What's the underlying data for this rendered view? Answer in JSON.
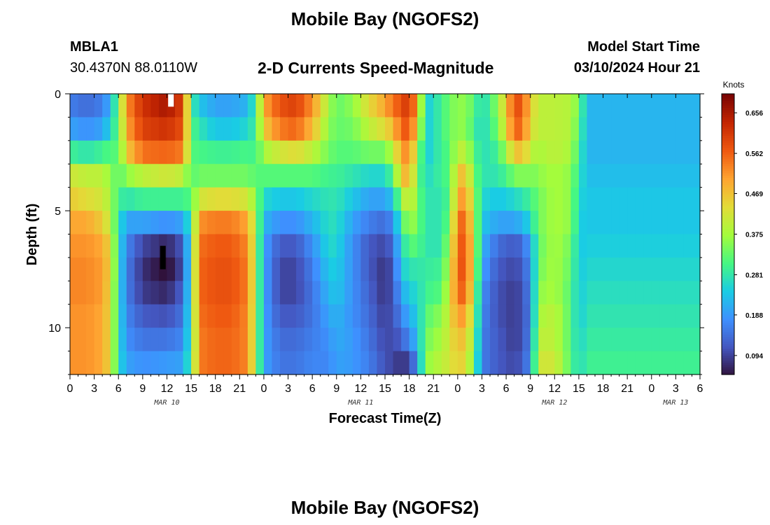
{
  "header": {
    "title": "Mobile Bay (NGOFS2)",
    "station_id": "MBLA1",
    "station_coords": "30.4370N  88.0110W",
    "subtitle": "2-D Currents Speed-Magnitude",
    "model_start_label": "Model Start Time",
    "model_start_value": "03/10/2024 Hour 21"
  },
  "footer": {
    "title": "Mobile Bay (NGOFS2)"
  },
  "chart_data": {
    "type": "heatmap",
    "xlabel": "Forecast Time(Z)",
    "ylabel": "Depth (ft)",
    "colorbar_label": "Knots",
    "colorbar_ticks": [
      "0.656",
      "0.562",
      "0.469",
      "0.375",
      "0.281",
      "0.188",
      "0.094"
    ],
    "colorbar_range": [
      0.05,
      0.7
    ],
    "xlim_hours": [
      0,
      78
    ],
    "ylim_ft": [
      0,
      12
    ],
    "x_tick_labels": [
      "0",
      "3",
      "6",
      "9",
      "12",
      "15",
      "18",
      "21",
      "0",
      "3",
      "6",
      "9",
      "12",
      "15",
      "18",
      "21",
      "0",
      "3",
      "6",
      "9",
      "12",
      "15",
      "18",
      "21",
      "0",
      "3",
      "6"
    ],
    "y_tick_labels": [
      "0",
      "5",
      "10"
    ],
    "date_labels": [
      {
        "label": "MAR 10",
        "hour": 12
      },
      {
        "label": "MAR 11",
        "hour": 36
      },
      {
        "label": "MAR 12",
        "hour": 60
      },
      {
        "label": "MAR 13",
        "hour": 75
      }
    ],
    "time_step_hours": 1,
    "depth_levels_ft": [
      0.5,
      1.5,
      2.5,
      3.5,
      4.5,
      5.5,
      6.5,
      7.5,
      8.5,
      9.5,
      10.5,
      11.5
    ],
    "column_profiles": {
      "0": [
        0.16,
        0.2,
        0.3,
        0.42,
        0.46,
        0.5,
        0.52,
        0.53,
        0.53,
        0.52,
        0.52,
        0.52
      ],
      "2": [
        0.14,
        0.18,
        0.28,
        0.4,
        0.44,
        0.5,
        0.52,
        0.53,
        0.53,
        0.52,
        0.52,
        0.52
      ],
      "4": [
        0.16,
        0.2,
        0.3,
        0.4,
        0.42,
        0.46,
        0.5,
        0.51,
        0.51,
        0.5,
        0.5,
        0.5
      ],
      "5": [
        0.22,
        0.26,
        0.32,
        0.36,
        0.38,
        0.4,
        0.44,
        0.45,
        0.44,
        0.44,
        0.44,
        0.44
      ],
      "6": [
        0.34,
        0.33,
        0.32,
        0.32,
        0.3,
        0.28,
        0.27,
        0.27,
        0.27,
        0.27,
        0.27,
        0.27
      ],
      "7": [
        0.52,
        0.5,
        0.46,
        0.36,
        0.28,
        0.2,
        0.17,
        0.16,
        0.16,
        0.17,
        0.18,
        0.2
      ],
      "9": [
        0.62,
        0.6,
        0.55,
        0.4,
        0.3,
        0.2,
        0.1,
        0.08,
        0.09,
        0.12,
        0.15,
        0.18
      ],
      "12": [
        0.66,
        0.62,
        0.56,
        0.42,
        0.3,
        0.18,
        0.07,
        0.04,
        0.07,
        0.11,
        0.15,
        0.19
      ],
      "14": [
        0.6,
        0.58,
        0.54,
        0.4,
        0.3,
        0.2,
        0.12,
        0.11,
        0.13,
        0.15,
        0.17,
        0.2
      ],
      "15": [
        0.3,
        0.32,
        0.32,
        0.32,
        0.32,
        0.3,
        0.3,
        0.3,
        0.3,
        0.3,
        0.3,
        0.31
      ],
      "16": [
        0.24,
        0.28,
        0.31,
        0.34,
        0.42,
        0.52,
        0.55,
        0.56,
        0.56,
        0.55,
        0.54,
        0.54
      ],
      "18": [
        0.2,
        0.24,
        0.3,
        0.34,
        0.44,
        0.54,
        0.57,
        0.58,
        0.58,
        0.57,
        0.56,
        0.56
      ],
      "20": [
        0.2,
        0.24,
        0.3,
        0.34,
        0.44,
        0.54,
        0.57,
        0.58,
        0.58,
        0.57,
        0.56,
        0.56
      ],
      "22": [
        0.22,
        0.26,
        0.31,
        0.34,
        0.42,
        0.5,
        0.53,
        0.54,
        0.54,
        0.53,
        0.53,
        0.53
      ],
      "23": [
        0.3,
        0.3,
        0.3,
        0.32,
        0.36,
        0.38,
        0.38,
        0.38,
        0.38,
        0.38,
        0.38,
        0.38
      ],
      "24": [
        0.5,
        0.46,
        0.38,
        0.32,
        0.26,
        0.22,
        0.2,
        0.2,
        0.2,
        0.2,
        0.2,
        0.2
      ],
      "26": [
        0.58,
        0.54,
        0.42,
        0.32,
        0.24,
        0.18,
        0.12,
        0.1,
        0.1,
        0.12,
        0.14,
        0.15
      ],
      "28": [
        0.6,
        0.56,
        0.44,
        0.32,
        0.24,
        0.18,
        0.12,
        0.1,
        0.1,
        0.12,
        0.14,
        0.15
      ],
      "30": [
        0.52,
        0.48,
        0.4,
        0.32,
        0.26,
        0.22,
        0.18,
        0.16,
        0.15,
        0.15,
        0.16,
        0.17
      ],
      "32": [
        0.38,
        0.36,
        0.34,
        0.3,
        0.28,
        0.27,
        0.26,
        0.24,
        0.22,
        0.2,
        0.18,
        0.17
      ],
      "33": [
        0.33,
        0.33,
        0.32,
        0.3,
        0.28,
        0.27,
        0.26,
        0.25,
        0.24,
        0.22,
        0.21,
        0.2
      ],
      "35": [
        0.36,
        0.34,
        0.32,
        0.28,
        0.24,
        0.2,
        0.18,
        0.18,
        0.18,
        0.18,
        0.19,
        0.19
      ],
      "37": [
        0.44,
        0.4,
        0.34,
        0.26,
        0.2,
        0.16,
        0.12,
        0.12,
        0.13,
        0.14,
        0.15,
        0.16
      ],
      "39": [
        0.5,
        0.44,
        0.34,
        0.26,
        0.2,
        0.14,
        0.1,
        0.08,
        0.08,
        0.09,
        0.1,
        0.11
      ],
      "40": [
        0.55,
        0.48,
        0.4,
        0.32,
        0.24,
        0.18,
        0.14,
        0.12,
        0.12,
        0.12,
        0.11,
        0.1
      ],
      "41": [
        0.58,
        0.56,
        0.5,
        0.46,
        0.36,
        0.3,
        0.26,
        0.24,
        0.2,
        0.16,
        0.12,
        0.08
      ],
      "42": [
        0.62,
        0.58,
        0.54,
        0.5,
        0.44,
        0.38,
        0.32,
        0.28,
        0.25,
        0.22,
        0.18,
        0.1
      ],
      "43": [
        0.5,
        0.46,
        0.38,
        0.34,
        0.34,
        0.34,
        0.32,
        0.28,
        0.26,
        0.24,
        0.22,
        0.18
      ],
      "44": [
        0.24,
        0.24,
        0.24,
        0.26,
        0.28,
        0.28,
        0.28,
        0.29,
        0.3,
        0.32,
        0.34,
        0.36
      ],
      "46": [
        0.3,
        0.3,
        0.3,
        0.3,
        0.28,
        0.28,
        0.28,
        0.3,
        0.32,
        0.36,
        0.38,
        0.4
      ],
      "47": [
        0.34,
        0.34,
        0.32,
        0.32,
        0.32,
        0.34,
        0.38,
        0.4,
        0.42,
        0.42,
        0.42,
        0.42
      ],
      "48": [
        0.36,
        0.36,
        0.4,
        0.46,
        0.5,
        0.55,
        0.56,
        0.57,
        0.56,
        0.52,
        0.48,
        0.46
      ],
      "49": [
        0.36,
        0.36,
        0.4,
        0.48,
        0.52,
        0.56,
        0.58,
        0.58,
        0.56,
        0.5,
        0.46,
        0.44
      ],
      "50": [
        0.32,
        0.3,
        0.32,
        0.34,
        0.38,
        0.4,
        0.42,
        0.42,
        0.4,
        0.38,
        0.36,
        0.34
      ],
      "51": [
        0.26,
        0.26,
        0.27,
        0.28,
        0.26,
        0.24,
        0.22,
        0.2,
        0.18,
        0.17,
        0.16,
        0.16
      ],
      "53": [
        0.36,
        0.34,
        0.3,
        0.28,
        0.24,
        0.2,
        0.14,
        0.12,
        0.11,
        0.11,
        0.12,
        0.12
      ],
      "55": [
        0.58,
        0.56,
        0.46,
        0.34,
        0.26,
        0.2,
        0.12,
        0.1,
        0.09,
        0.09,
        0.09,
        0.1
      ],
      "56": [
        0.58,
        0.56,
        0.48,
        0.36,
        0.28,
        0.22,
        0.14,
        0.12,
        0.11,
        0.11,
        0.11,
        0.12
      ],
      "57": [
        0.46,
        0.44,
        0.4,
        0.34,
        0.3,
        0.26,
        0.2,
        0.18,
        0.17,
        0.16,
        0.17,
        0.18
      ],
      "58": [
        0.4,
        0.4,
        0.38,
        0.36,
        0.34,
        0.34,
        0.33,
        0.34,
        0.36,
        0.38,
        0.4,
        0.42
      ],
      "60": [
        0.4,
        0.4,
        0.4,
        0.38,
        0.38,
        0.38,
        0.38,
        0.38,
        0.38,
        0.4,
        0.4,
        0.42
      ],
      "62": [
        0.39,
        0.39,
        0.38,
        0.36,
        0.36,
        0.36,
        0.34,
        0.33,
        0.32,
        0.32,
        0.32,
        0.32
      ],
      "63": [
        0.34,
        0.32,
        0.3,
        0.28,
        0.26,
        0.25,
        0.24,
        0.24,
        0.24,
        0.24,
        0.25,
        0.26
      ],
      "64": [
        0.22,
        0.22,
        0.22,
        0.23,
        0.24,
        0.24,
        0.25,
        0.26,
        0.27,
        0.28,
        0.29,
        0.3
      ]
    },
    "markers": [
      {
        "hour": 12.5,
        "depth_top_ft": 0.0,
        "depth_bottom_ft": 0.55,
        "value": "max"
      },
      {
        "hour": 11.5,
        "depth_top_ft": 6.5,
        "depth_bottom_ft": 7.5,
        "value": "min"
      }
    ]
  }
}
